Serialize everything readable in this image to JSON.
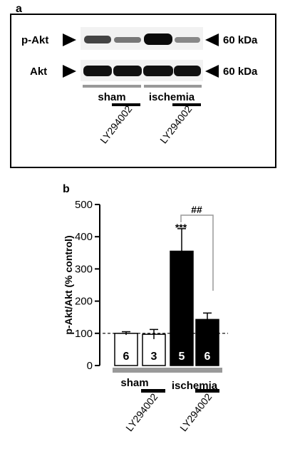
{
  "panel_a": {
    "letter": "a",
    "rows": [
      {
        "label": "p-Akt",
        "mw": "60 kDa"
      },
      {
        "label": "Akt",
        "mw": "60 kDa"
      }
    ],
    "groups": [
      "sham",
      "ischemia"
    ],
    "treatment": "LY294002",
    "colors": {
      "border": "#000000",
      "group_bar": "#999999",
      "band": "#111111",
      "blot_bg": "#f2f2f2"
    }
  },
  "panel_b": {
    "letter": "b",
    "groups": [
      "sham",
      "ischemia"
    ],
    "treatment": "LY294002",
    "significance": {
      "vs_sham": "***",
      "vs_ischemia": "##"
    },
    "colors": {
      "filled": "#000000",
      "empty": "#ffffff",
      "group_bar": "#999999",
      "bracket": "#999999"
    }
  },
  "chart_data": {
    "type": "bar",
    "title": "",
    "xlabel": "",
    "ylabel": "p-Akt/Akt (% control)",
    "ylim": [
      0,
      500
    ],
    "yticks": [
      "0",
      "100",
      "200",
      "300",
      "400",
      "500"
    ],
    "categories": [
      "sham",
      "sham + LY294002",
      "ischemia",
      "ischemia + LY294002"
    ],
    "values": [
      100,
      97,
      355,
      143
    ],
    "errors": [
      5,
      15,
      70,
      20
    ],
    "n": [
      "6",
      "3",
      "5",
      "6"
    ],
    "fill": [
      "white",
      "white",
      "black",
      "black"
    ],
    "reference_line": 100
  }
}
